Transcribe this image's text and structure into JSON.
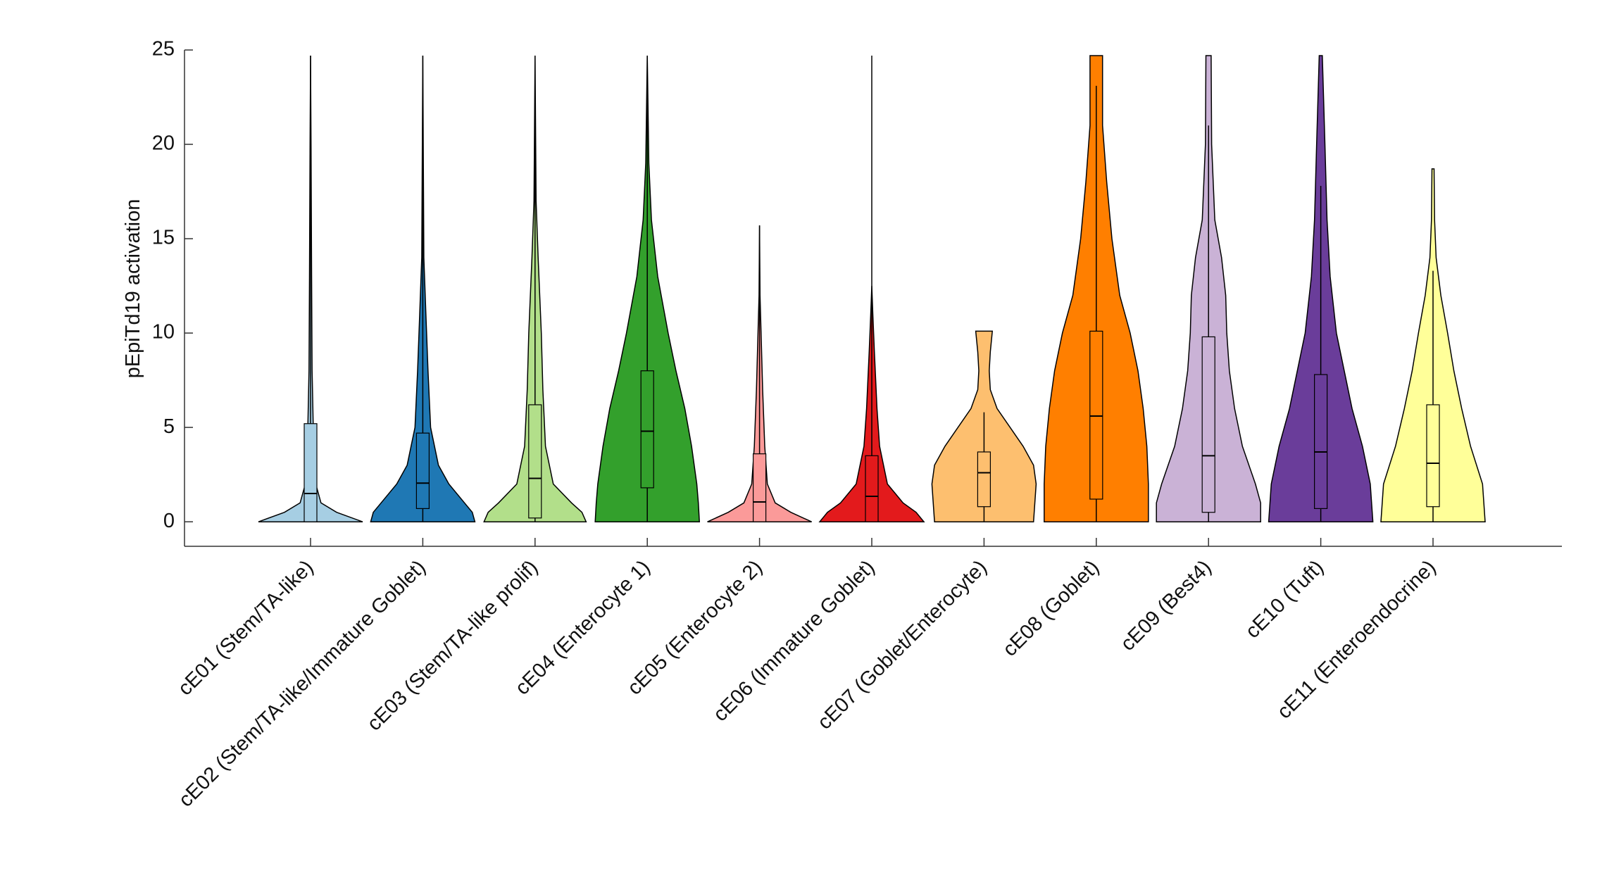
{
  "chart_data": {
    "type": "violin",
    "ylabel": "pEpiTd19 activation",
    "ylim": [
      -1.3,
      25
    ],
    "yticks": [
      0,
      5,
      10,
      15,
      20,
      25
    ],
    "categories": [
      "cE01 (Stem/TA-like)",
      "cE02 (Stem/TA-like/Immature Goblet)",
      "cE03 (Stem/TA-like prolif)",
      "cE04 (Enterocyte 1)",
      "cE05 (Enterocyte 2)",
      "cE06 (Immature Goblet)",
      "cE07 (Goblet/Enterocyte)",
      "cE08 (Goblet)",
      "cE09 (Best4)",
      "cE10 (Tuft)",
      "cE11 (Enteroendocrine)"
    ],
    "violins": [
      {
        "color": "#a6cee3",
        "profile_y": [
          0,
          0.5,
          1,
          2,
          4,
          8,
          13,
          20,
          24.7
        ],
        "profile_w": [
          1.0,
          0.5,
          0.2,
          0.1,
          0.06,
          0.03,
          0.02,
          0.01,
          0
        ],
        "q1": 0,
        "median": 1.5,
        "q3": 5.2,
        "whisker": [
          0,
          24.7
        ]
      },
      {
        "color": "#1f78b4",
        "profile_y": [
          0,
          0.5,
          1,
          2,
          3,
          5,
          8,
          11,
          14,
          24.7
        ],
        "profile_w": [
          1.0,
          0.95,
          0.8,
          0.5,
          0.3,
          0.15,
          0.1,
          0.06,
          0.02,
          0
        ],
        "q1": 0.7,
        "median": 2.05,
        "q3": 4.7,
        "whisker": [
          0,
          24.7
        ]
      },
      {
        "color": "#b2df8a",
        "profile_y": [
          0,
          0.5,
          1,
          2,
          4,
          7,
          10,
          14,
          17,
          24.7
        ],
        "profile_w": [
          0.98,
          0.9,
          0.7,
          0.35,
          0.2,
          0.15,
          0.12,
          0.06,
          0.02,
          0
        ],
        "q1": 0.2,
        "median": 2.3,
        "q3": 6.2,
        "whisker": [
          0,
          24.7
        ]
      },
      {
        "color": "#33a02c",
        "profile_y": [
          0,
          1,
          2,
          4,
          6,
          8,
          10,
          13,
          16,
          19,
          24.7
        ],
        "profile_w": [
          1.0,
          0.98,
          0.95,
          0.85,
          0.72,
          0.55,
          0.4,
          0.2,
          0.08,
          0.03,
          0
        ],
        "q1": 1.8,
        "median": 4.8,
        "q3": 8.0,
        "whisker": [
          0,
          24.7
        ]
      },
      {
        "color": "#fb9a99",
        "profile_y": [
          0,
          0.5,
          1,
          2,
          4,
          7,
          10,
          12,
          15.7
        ],
        "profile_w": [
          1.0,
          0.6,
          0.3,
          0.15,
          0.1,
          0.06,
          0.03,
          0.01,
          0
        ],
        "q1": 0,
        "median": 1.05,
        "q3": 3.6,
        "whisker": [
          0,
          15.7
        ]
      },
      {
        "color": "#e31a1c",
        "profile_y": [
          0,
          0.5,
          1,
          2,
          4,
          6,
          9,
          11,
          12.5
        ],
        "profile_w": [
          1.0,
          0.85,
          0.6,
          0.3,
          0.15,
          0.1,
          0.05,
          0.02,
          0
        ],
        "q1": 0,
        "median": 1.35,
        "q3": 3.5,
        "whisker": [
          0,
          24.7
        ]
      },
      {
        "color": "#fdbf6f",
        "profile_y": [
          0,
          2,
          3,
          4,
          5,
          6,
          7,
          8,
          9,
          10.1
        ],
        "profile_w": [
          0.95,
          1.0,
          0.95,
          0.75,
          0.5,
          0.25,
          0.12,
          0.1,
          0.12,
          0.16
        ],
        "q1": 0.8,
        "median": 2.6,
        "q3": 3.7,
        "whisker": [
          0,
          5.8
        ]
      },
      {
        "color": "#ff7f00",
        "profile_y": [
          0,
          2,
          4,
          6,
          8,
          10,
          12,
          15,
          18,
          21,
          24.7
        ],
        "profile_w": [
          1.0,
          1.0,
          0.97,
          0.9,
          0.8,
          0.65,
          0.45,
          0.3,
          0.2,
          0.12,
          0.12
        ],
        "q1": 1.2,
        "median": 5.6,
        "q3": 10.1,
        "whisker": [
          0,
          23.1
        ]
      },
      {
        "color": "#cab2d6",
        "profile_y": [
          0,
          1,
          2,
          4,
          6,
          8,
          10,
          12,
          14,
          16,
          20,
          24.7
        ],
        "profile_w": [
          1.0,
          1.0,
          0.9,
          0.65,
          0.5,
          0.4,
          0.35,
          0.33,
          0.25,
          0.12,
          0.06,
          0.05
        ],
        "q1": 0.5,
        "median": 3.5,
        "q3": 9.8,
        "whisker": [
          0,
          21
        ]
      },
      {
        "color": "#6a3d9a",
        "profile_y": [
          0,
          2,
          4,
          6,
          8,
          10,
          13,
          16,
          20,
          24.7
        ],
        "profile_w": [
          1.0,
          0.95,
          0.8,
          0.6,
          0.45,
          0.3,
          0.18,
          0.12,
          0.08,
          0.03
        ],
        "q1": 0.7,
        "median": 3.7,
        "q3": 7.8,
        "whisker": [
          0,
          17.8
        ]
      },
      {
        "color": "#ffff99",
        "profile_y": [
          0,
          2,
          4,
          6,
          8,
          10,
          12,
          14,
          16,
          18.7
        ],
        "profile_w": [
          1.0,
          0.95,
          0.72,
          0.55,
          0.4,
          0.28,
          0.15,
          0.06,
          0.03,
          0.02
        ],
        "q1": 0.8,
        "median": 3.1,
        "q3": 6.2,
        "whisker": [
          0,
          13.3
        ]
      }
    ]
  }
}
